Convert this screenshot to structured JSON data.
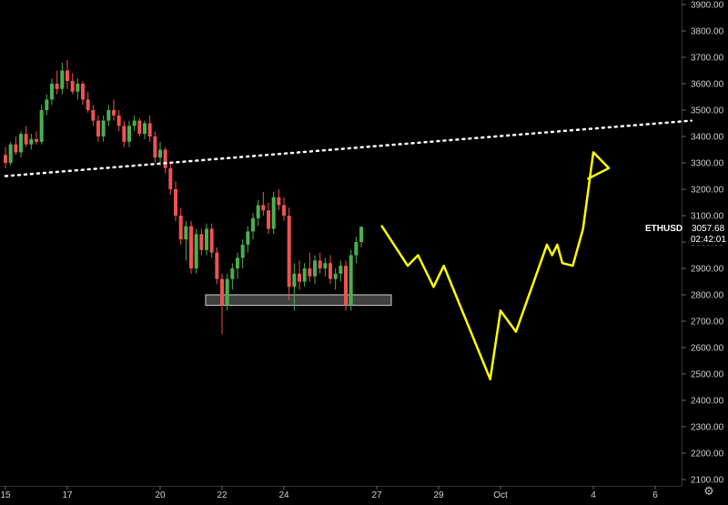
{
  "chart_data": {
    "type": "candlestick",
    "symbol": "ETHUSD",
    "last_price": "3057.68",
    "countdown": "02:42:01",
    "y_axis": {
      "range": [
        2100,
        3900
      ],
      "ticks": [
        "3900.00",
        "3800.00",
        "3700.00",
        "3600.00",
        "3500.00",
        "3400.00",
        "3300.00",
        "3200.00",
        "3100.00",
        "3000.00",
        "2900.00",
        "2800.00",
        "2700.00",
        "2600.00",
        "2500.00",
        "2400.00",
        "2300.00",
        "2200.00",
        "2100.00"
      ]
    },
    "x_axis": {
      "ticks": [
        {
          "label": "15",
          "slot": 0
        },
        {
          "label": "17",
          "slot": 12
        },
        {
          "label": "20",
          "slot": 30
        },
        {
          "label": "22",
          "slot": 42
        },
        {
          "label": "24",
          "slot": 54
        },
        {
          "label": "27",
          "slot": 72
        },
        {
          "label": "29",
          "slot": 84
        },
        {
          "label": "Oct",
          "slot": 96
        },
        {
          "label": "4",
          "slot": 114
        },
        {
          "label": "6",
          "slot": 126
        }
      ]
    },
    "candles": [
      [
        3330,
        3360,
        3280,
        3300
      ],
      [
        3300,
        3380,
        3290,
        3370
      ],
      [
        3370,
        3400,
        3330,
        3340
      ],
      [
        3340,
        3420,
        3320,
        3410
      ],
      [
        3410,
        3440,
        3360,
        3370
      ],
      [
        3370,
        3410,
        3350,
        3390
      ],
      [
        3390,
        3420,
        3370,
        3380
      ],
      [
        3380,
        3520,
        3370,
        3500
      ],
      [
        3500,
        3560,
        3480,
        3540
      ],
      [
        3540,
        3620,
        3520,
        3600
      ],
      [
        3600,
        3650,
        3560,
        3580
      ],
      [
        3580,
        3680,
        3560,
        3650
      ],
      [
        3650,
        3690,
        3580,
        3610
      ],
      [
        3610,
        3640,
        3560,
        3570
      ],
      [
        3570,
        3620,
        3540,
        3600
      ],
      [
        3600,
        3610,
        3520,
        3540
      ],
      [
        3540,
        3570,
        3490,
        3500
      ],
      [
        3500,
        3520,
        3440,
        3460
      ],
      [
        3460,
        3480,
        3380,
        3400
      ],
      [
        3400,
        3480,
        3380,
        3460
      ],
      [
        3460,
        3520,
        3440,
        3500
      ],
      [
        3500,
        3540,
        3460,
        3480
      ],
      [
        3480,
        3500,
        3420,
        3440
      ],
      [
        3440,
        3460,
        3360,
        3380
      ],
      [
        3380,
        3460,
        3360,
        3440
      ],
      [
        3440,
        3480,
        3420,
        3460
      ],
      [
        3460,
        3470,
        3400,
        3410
      ],
      [
        3410,
        3460,
        3390,
        3450
      ],
      [
        3450,
        3480,
        3380,
        3400
      ],
      [
        3400,
        3420,
        3300,
        3320
      ],
      [
        3320,
        3380,
        3290,
        3350
      ],
      [
        3350,
        3360,
        3260,
        3280
      ],
      [
        3280,
        3300,
        3180,
        3200
      ],
      [
        3200,
        3230,
        3080,
        3100
      ],
      [
        3100,
        3130,
        2990,
        3010
      ],
      [
        3010,
        3080,
        2930,
        3060
      ],
      [
        3060,
        3080,
        2880,
        2900
      ],
      [
        2900,
        3050,
        2880,
        3030
      ],
      [
        3030,
        3050,
        2950,
        2970
      ],
      [
        2970,
        3070,
        2950,
        3050
      ],
      [
        3050,
        3070,
        2940,
        2960
      ],
      [
        2960,
        2980,
        2840,
        2860
      ],
      [
        2860,
        2880,
        2650,
        2760
      ],
      [
        2760,
        2880,
        2740,
        2860
      ],
      [
        2860,
        2920,
        2820,
        2900
      ],
      [
        2900,
        2960,
        2860,
        2940
      ],
      [
        2940,
        3010,
        2900,
        2990
      ],
      [
        2990,
        3060,
        2960,
        3040
      ],
      [
        3040,
        3110,
        3010,
        3090
      ],
      [
        3090,
        3160,
        3060,
        3140
      ],
      [
        3140,
        3190,
        3100,
        3120
      ],
      [
        3120,
        3150,
        3030,
        3050
      ],
      [
        3050,
        3190,
        3030,
        3170
      ],
      [
        3170,
        3200,
        3120,
        3140
      ],
      [
        3140,
        3170,
        3080,
        3100
      ],
      [
        3100,
        3130,
        2780,
        2830
      ],
      [
        2830,
        2920,
        2740,
        2880
      ],
      [
        2880,
        2930,
        2820,
        2850
      ],
      [
        2850,
        2920,
        2830,
        2900
      ],
      [
        2900,
        2960,
        2850,
        2870
      ],
      [
        2870,
        2950,
        2840,
        2930
      ],
      [
        2930,
        2960,
        2880,
        2900
      ],
      [
        2900,
        2940,
        2870,
        2920
      ],
      [
        2920,
        2950,
        2840,
        2860
      ],
      [
        2860,
        2900,
        2820,
        2880
      ],
      [
        2880,
        2930,
        2850,
        2910
      ],
      [
        2910,
        2930,
        2740,
        2760
      ],
      [
        2760,
        2970,
        2740,
        2950
      ],
      [
        2950,
        3020,
        2920,
        3000
      ],
      [
        3000,
        3060,
        2980,
        3057.68
      ]
    ],
    "annotations": {
      "support_zone": [
        2760,
        2800
      ],
      "trendline": {
        "from": {
          "slot": 0,
          "value": 3250
        },
        "to": {
          "slot": 133,
          "value": 3460
        }
      },
      "projection": [
        {
          "slot": 73,
          "value": 3060
        },
        [
          78,
          2910
        ],
        [
          80,
          2950
        ],
        [
          83,
          2830
        ],
        [
          85,
          2910
        ],
        {
          "slot": 94,
          "value": 2480
        },
        [
          96,
          2740
        ],
        [
          99,
          2660
        ],
        [
          103,
          2880
        ],
        [
          105,
          2990
        ],
        [
          106,
          2950
        ],
        [
          107,
          2990
        ],
        [
          108,
          2920
        ],
        {
          "slot": 110,
          "value": 2910
        },
        [
          112,
          3050
        ],
        [
          114,
          3340
        ],
        [
          117,
          3280
        ],
        [
          113,
          3240
        ]
      ]
    },
    "colors": {
      "background": "#000000",
      "up": "#4caf50",
      "down": "#ef5350",
      "projection": "#ffff00",
      "trendline": "#ffffff",
      "support_zone": "#555555",
      "price_tag": "#000000"
    }
  }
}
